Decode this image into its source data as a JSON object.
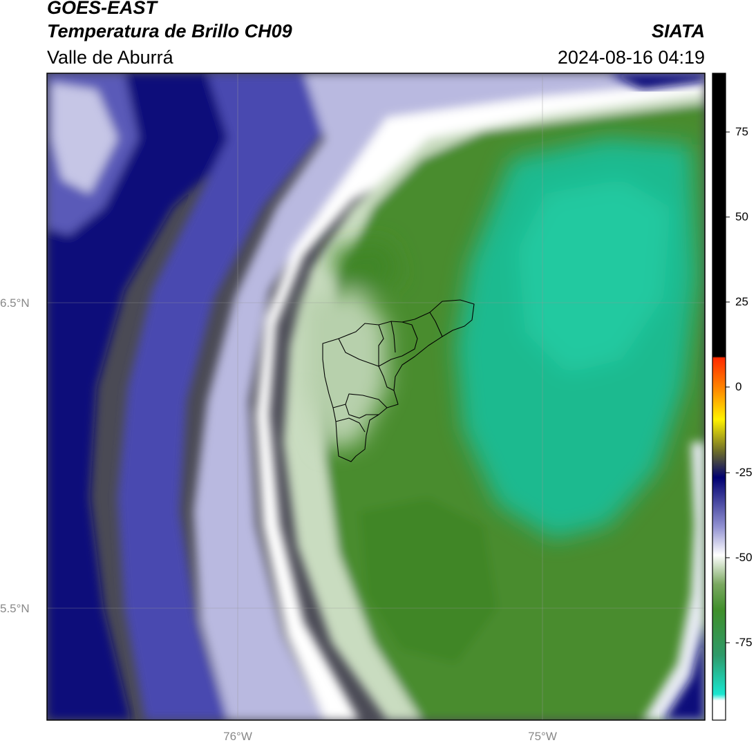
{
  "header": {
    "satellite": "GOES-EAST",
    "product": "Temperatura de Brillo CH09",
    "region": "Valle de Aburrá",
    "agency": "SIATA",
    "datetime": "2024-08-16 04:19"
  },
  "axes": {
    "lat_labels": [
      "6.5°N",
      "5.5°N"
    ],
    "lon_labels": [
      "76°W",
      "75°W"
    ]
  },
  "colorbar": {
    "tick_labels": [
      "75",
      "50",
      "25",
      "0",
      "-25",
      "-50",
      "-75"
    ],
    "colors": {
      "black": "#000000",
      "red": "#ff2a00",
      "orange": "#ff8c00",
      "yellow": "#fff200",
      "olive": "#6b6b2a",
      "navy": "#000070",
      "white": "#ffffff",
      "green": "#3f8f2a",
      "cyan": "#19e6d0"
    }
  },
  "map_colors": {
    "warm_dark": "#4a4a55",
    "navy": "#0b0b7a",
    "blue_mid": "#4a4ab0",
    "lavender": "#b9b9e0",
    "white": "#ffffff",
    "pale_green": "#c9dcc0",
    "green": "#4a8c2e",
    "teal": "#1fba8f"
  }
}
